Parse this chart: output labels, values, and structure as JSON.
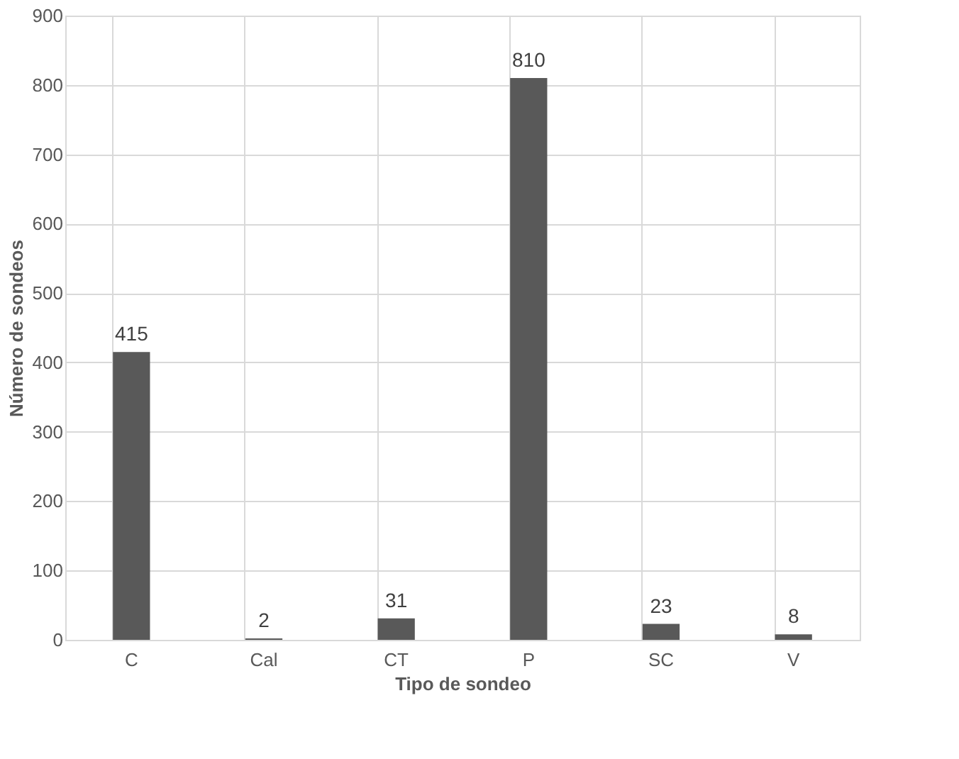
{
  "chart_data": {
    "type": "bar",
    "xlabel": "Tipo de sondeo",
    "ylabel": "Número de sondeos",
    "categories": [
      "C",
      "Cal",
      "CT",
      "P",
      "SC",
      "V"
    ],
    "values": [
      415,
      2,
      31,
      810,
      23,
      8
    ],
    "color": "#595959",
    "ylim": [
      0,
      900
    ],
    "yticks": [
      0,
      100,
      200,
      300,
      400,
      500,
      600,
      700,
      800,
      900
    ],
    "grid": true,
    "data_labels": true
  }
}
